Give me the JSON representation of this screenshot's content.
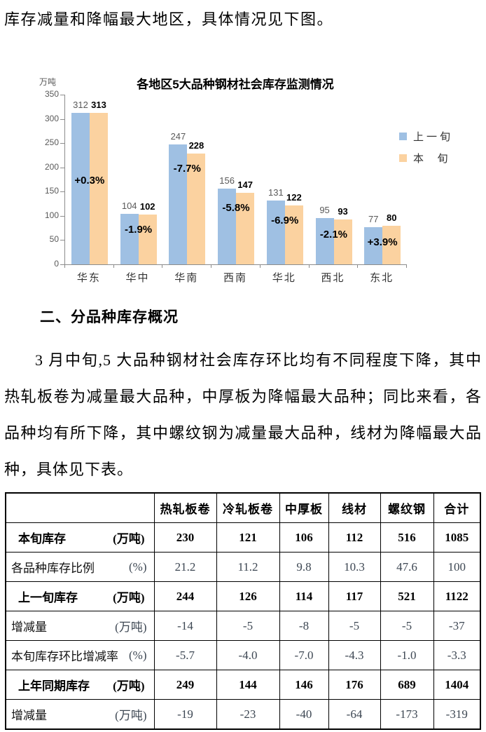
{
  "page": {
    "intro_text": "库存减量和降幅最大地区，具体情况见下图。",
    "section_heading": "二、分品种库存概况",
    "paragraph": "3 月中旬,5 大品种钢材社会库存环比均有不同程度下降，其中热轧板卷为减量最大品种，中厚板为降幅最大品种；同比来看，各品种均有所下降，其中螺纹钢为减量最大品种，线材为降幅最大品种，具体见下表。"
  },
  "chart_data": {
    "type": "bar",
    "title": "各地区5大品种钢材社会库存监测情况",
    "unit_label": "万吨",
    "categories": [
      "华东",
      "华中",
      "华南",
      "西南",
      "华北",
      "西北",
      "东北"
    ],
    "series": [
      {
        "name": "上一旬",
        "color": "#9FC0E3",
        "values": [
          312,
          104,
          247,
          156,
          131,
          95,
          77
        ]
      },
      {
        "name": "本旬",
        "color": "#FBD2A0",
        "values": [
          313,
          102,
          228,
          147,
          122,
          93,
          80
        ]
      }
    ],
    "legend_labels": [
      "上一旬",
      "本  旬"
    ],
    "change_labels": [
      "+0.3%",
      "-1.9%",
      "-7.7%",
      "-5.8%",
      "-6.9%",
      "-2.1%",
      "+3.9%"
    ],
    "ylabel": "万吨",
    "ylim": [
      0,
      350
    ],
    "ytick_step": 50,
    "grid": false,
    "legend_position": "right"
  },
  "table": {
    "column_headers": [
      "",
      "热轧板卷",
      "冷轧板卷",
      "中厚板",
      "线材",
      "螺纹钢",
      "合计"
    ],
    "rows": [
      {
        "label": "本旬库存",
        "unit": "(万吨)",
        "bold": true,
        "values": [
          "230",
          "121",
          "106",
          "112",
          "516",
          "1085"
        ]
      },
      {
        "label": "各品种库存比例",
        "unit": "(%)",
        "bold": false,
        "values": [
          "21.2",
          "11.2",
          "9.8",
          "10.3",
          "47.6",
          "100"
        ]
      },
      {
        "label": "上一旬库存",
        "unit": "(万吨)",
        "bold": true,
        "values": [
          "244",
          "126",
          "114",
          "117",
          "521",
          "1122"
        ]
      },
      {
        "label": "增减量",
        "unit": "(万吨)",
        "bold": false,
        "values": [
          "-14",
          "-5",
          "-8",
          "-5",
          "-5",
          "-37"
        ]
      },
      {
        "label": "本旬库存环比增减率",
        "unit": "(%)",
        "bold": false,
        "values": [
          "-5.7",
          "-4.0",
          "-7.0",
          "-4.3",
          "-1.0",
          "-3.3"
        ]
      },
      {
        "label": "上年同期库存",
        "unit": "(万吨)",
        "bold": true,
        "values": [
          "249",
          "144",
          "146",
          "176",
          "689",
          "1404"
        ]
      },
      {
        "label": "增减量",
        "unit": "(万吨)",
        "bold": false,
        "values": [
          "-19",
          "-23",
          "-40",
          "-64",
          "-173",
          "-319"
        ]
      }
    ]
  },
  "colors": {
    "prev_period_bar": "#9FC0E3",
    "current_period_bar": "#FBD2A0",
    "axis": "#8c8c8c",
    "axis_text": "#595959"
  }
}
